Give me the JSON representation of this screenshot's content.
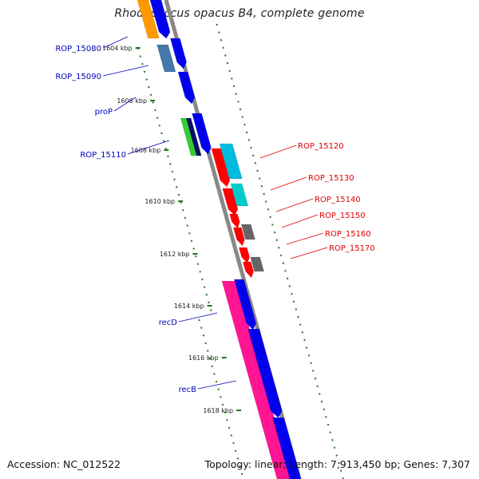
{
  "title": "Rhodococcus opacus B4, complete genome",
  "footer": {
    "accession": "Accession: NC_012522",
    "topology": "Topology: linear; Length: 7,913,450 bp; Genes: 7,307"
  },
  "ticks": [
    "1604 kbp",
    "1606 kbp",
    "1608 kbp",
    "1610 kbp",
    "1612 kbp",
    "1614 kbp",
    "1616 kbp",
    "1618 kbp"
  ],
  "left_genes": [
    "ROP_15080",
    "ROP_15090",
    "proP",
    "ROP_15110",
    "recD",
    "recB"
  ],
  "right_genes": [
    "ROP_15120",
    "ROP_15130",
    "ROP_15140",
    "ROP_15150",
    "ROP_15160",
    "ROP_15170"
  ],
  "colors": {
    "backbone": "#888888",
    "blue": "#0000ee",
    "red": "#ff0000",
    "cyan": "#00bbdd",
    "pink": "#ff1493",
    "green_dots": "#1a7a1a",
    "left_label": "#0000bb",
    "right_label": "#dd0000"
  }
}
